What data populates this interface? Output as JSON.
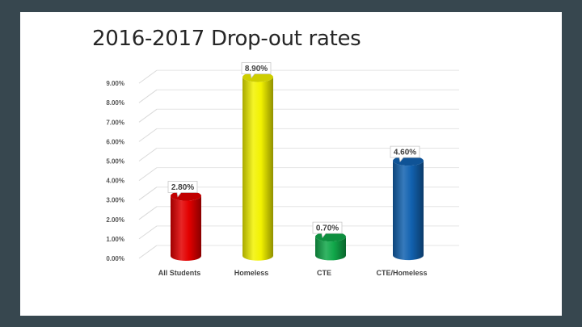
{
  "slide": {
    "title": "2016-2017 Drop-out rates"
  },
  "chart_data": {
    "type": "bar",
    "title": "2016-2017 Drop-out rates",
    "categories": [
      "All Students",
      "Homeless",
      "CTE",
      "CTE/Homeless"
    ],
    "values": [
      2.8,
      8.9,
      0.7,
      4.6
    ],
    "data_labels": [
      "2.80%",
      "8.90%",
      "0.70%",
      "4.60%"
    ],
    "tick_labels": [
      "0.00%",
      "1.00%",
      "2.00%",
      "3.00%",
      "4.00%",
      "5.00%",
      "6.00%",
      "7.00%",
      "8.00%",
      "9.00%"
    ],
    "ylim": [
      0,
      9
    ],
    "grid": true,
    "legend": "none",
    "bar_style": "3d-cylinder",
    "colors": [
      "#e30000",
      "#f2f200",
      "#11a84a",
      "#1262b0"
    ],
    "xlabel": "",
    "ylabel": ""
  }
}
